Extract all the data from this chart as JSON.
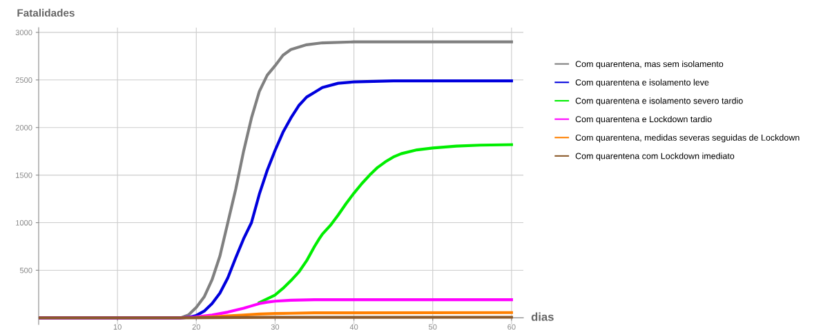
{
  "chart_data": {
    "type": "line",
    "ylabel": "Fatalidades",
    "xlabel": "dias",
    "xlim": [
      0,
      61.5
    ],
    "ylim": [
      -70,
      3050
    ],
    "xticks": [
      10,
      20,
      30,
      40,
      50,
      60
    ],
    "yticks": [
      500,
      1000,
      1500,
      2000,
      2500,
      3000
    ],
    "grid": true,
    "legend": "right",
    "marker": "none",
    "line_style": "solid",
    "series": [
      {
        "name": "Com quarentena, mas sem isolamento",
        "color": "#808080",
        "x": [
          0,
          17,
          18,
          19,
          20,
          21,
          22,
          23,
          24,
          25,
          26,
          27,
          28,
          29,
          30,
          31,
          32,
          34,
          36,
          40,
          60
        ],
        "values": [
          0,
          0,
          0,
          30,
          110,
          220,
          400,
          650,
          1000,
          1350,
          1750,
          2100,
          2380,
          2550,
          2650,
          2760,
          2820,
          2870,
          2890,
          2900,
          2900
        ]
      },
      {
        "name": "Com quarentena e isolamento leve",
        "color": "#0000dd",
        "x": [
          0,
          18,
          19,
          20,
          21,
          22,
          23,
          24,
          25,
          26,
          27,
          28,
          29,
          30,
          31,
          32,
          33,
          34,
          35,
          36,
          38,
          40,
          45,
          60
        ],
        "values": [
          0,
          0,
          5,
          25,
          70,
          150,
          260,
          420,
          630,
          830,
          1000,
          1300,
          1550,
          1760,
          1950,
          2100,
          2230,
          2320,
          2370,
          2420,
          2465,
          2480,
          2490,
          2490
        ]
      },
      {
        "name": "Com quarentena e isolamento severo tardio",
        "color": "#00ee00",
        "x": [
          28,
          30,
          31,
          32,
          33,
          34,
          35,
          35.6,
          36,
          37,
          38,
          39,
          40,
          41,
          42,
          43,
          44,
          45,
          46,
          48,
          50,
          53,
          56,
          60
        ],
        "values": [
          160,
          240,
          310,
          390,
          480,
          600,
          750,
          830,
          880,
          970,
          1080,
          1200,
          1310,
          1410,
          1500,
          1580,
          1640,
          1690,
          1725,
          1765,
          1785,
          1805,
          1815,
          1820
        ]
      },
      {
        "name": "Com quarentena e Lockdown tardio",
        "color": "#ff00ff",
        "x": [
          0,
          18,
          20,
          22,
          24,
          26,
          27,
          28,
          29,
          30,
          32,
          35,
          60
        ],
        "values": [
          0,
          0,
          10,
          30,
          60,
          100,
          125,
          150,
          165,
          175,
          185,
          190,
          190
        ]
      },
      {
        "name": "Com quarentena, medidas severas seguidas de Lockdown",
        "color": "#ff8000",
        "x": [
          20,
          22,
          24,
          26,
          28,
          30,
          32,
          35,
          60
        ],
        "values": [
          3,
          10,
          20,
          30,
          40,
          45,
          48,
          52,
          55
        ]
      },
      {
        "name": "Com quarentena com Lockdown imediato",
        "color": "#8b5a2b",
        "x": [
          0,
          18,
          25,
          30,
          60
        ],
        "values": [
          0,
          0,
          3,
          5,
          6
        ]
      }
    ]
  }
}
